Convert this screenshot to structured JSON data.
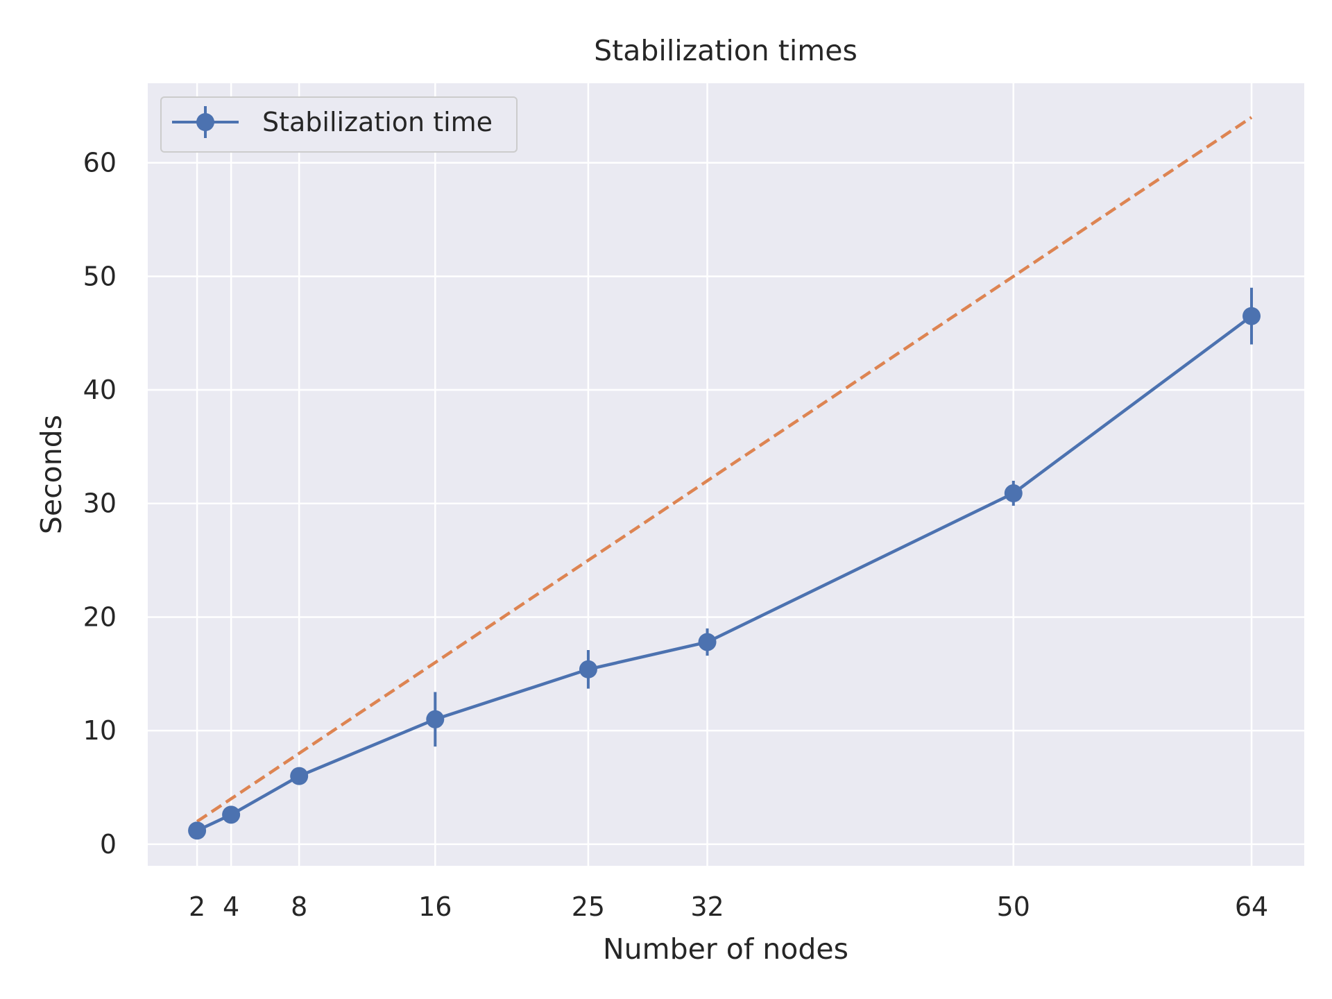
{
  "chart_data": {
    "type": "line",
    "title": "Stabilization times",
    "xlabel": "Number of nodes",
    "ylabel": "Seconds",
    "x": [
      2,
      4,
      8,
      16,
      25,
      32,
      50,
      64
    ],
    "xticks": [
      "2",
      "4",
      "8",
      "16",
      "25",
      "32",
      "50",
      "64"
    ],
    "xlim": [
      -0.9,
      67.1
    ],
    "yticks": [
      "0",
      "10",
      "20",
      "30",
      "40",
      "50",
      "60"
    ],
    "ylim": [
      -1.9,
      67.0
    ],
    "grid": true,
    "legend_position": "top-left",
    "series": [
      {
        "name": "Stabilization time",
        "color": "#4c72b0",
        "style": "solid-with-markers",
        "values": [
          1.2,
          2.6,
          6.0,
          11.0,
          15.4,
          17.8,
          30.9,
          46.5
        ],
        "error": [
          0.3,
          0.3,
          0.4,
          2.4,
          1.7,
          1.2,
          1.1,
          2.5
        ]
      },
      {
        "name": "",
        "color": "#dd8452",
        "style": "dashed",
        "values": [
          2,
          4,
          8,
          16,
          25,
          32,
          50,
          64
        ]
      }
    ],
    "colors": {
      "plot_background": "#eaeaf2",
      "grid": "#ffffff",
      "text": "#262626"
    }
  }
}
